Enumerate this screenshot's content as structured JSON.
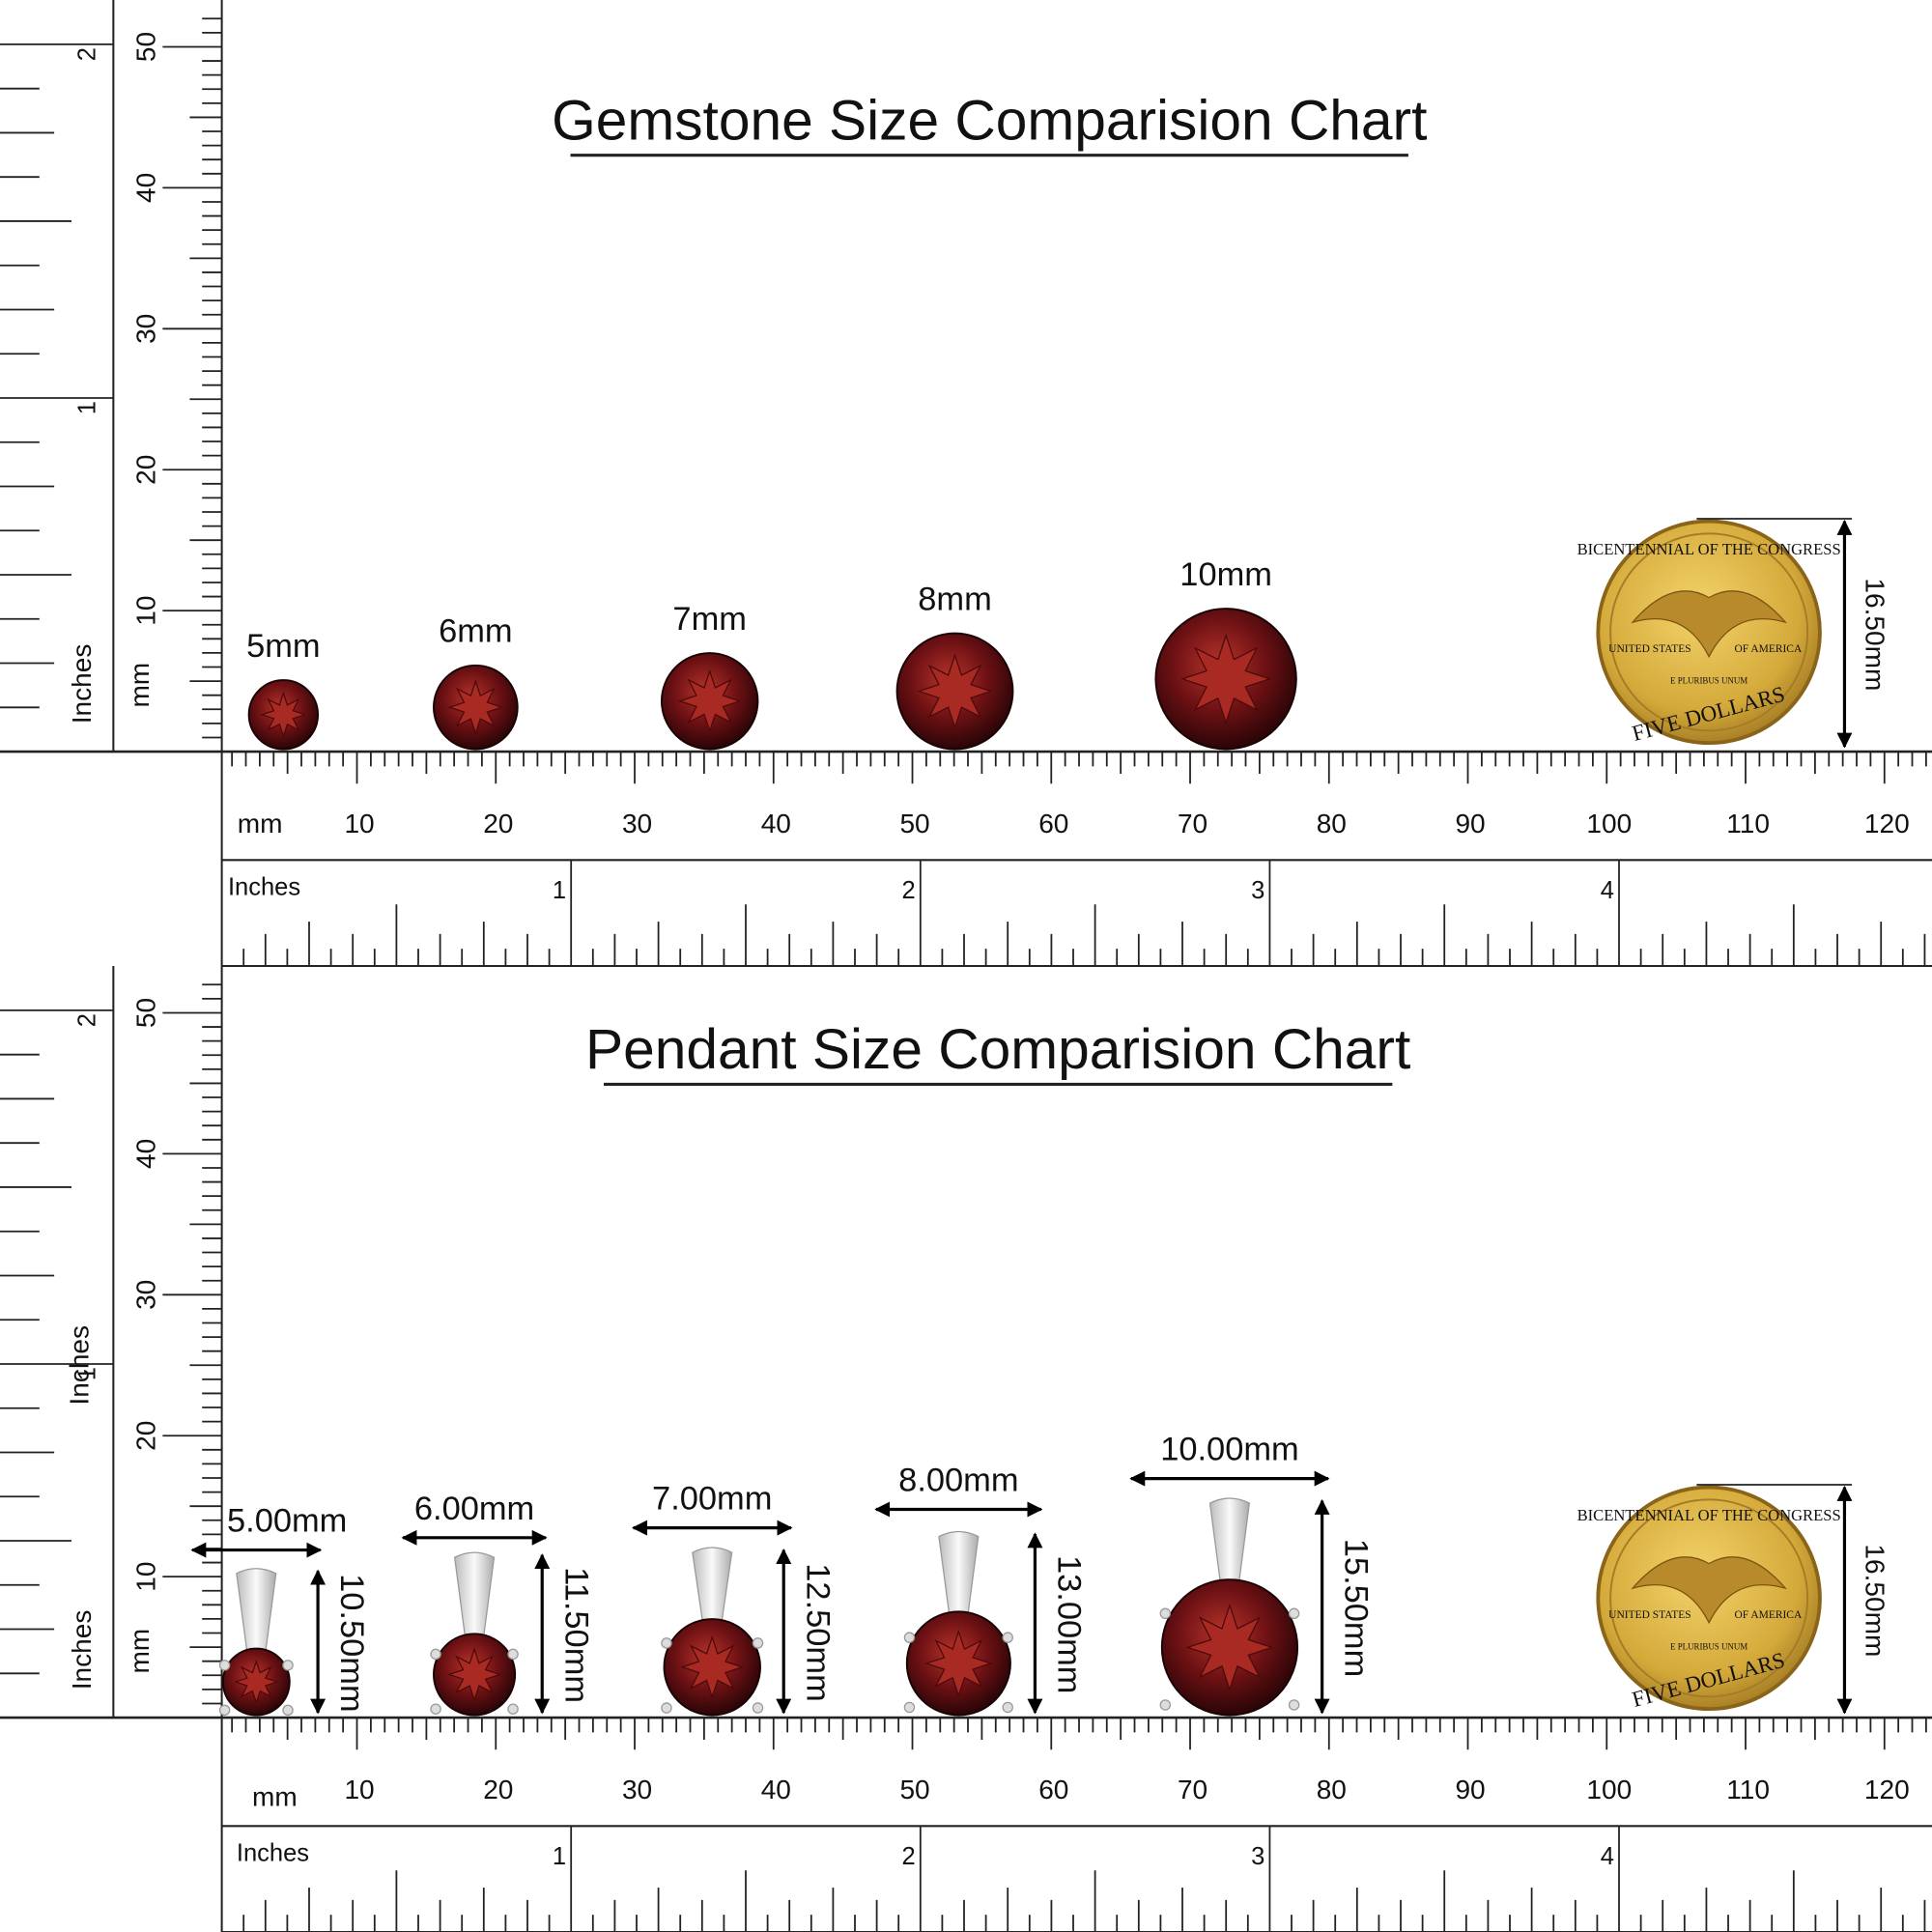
{
  "gemstone_chart": {
    "title": "Gemstone Size Comparision Chart",
    "gems": [
      "5mm",
      "6mm",
      "7mm",
      "8mm",
      "10mm"
    ],
    "coin_label": "16.50mm"
  },
  "pendant_chart": {
    "title": "Pendant Size Comparision Chart",
    "widths": [
      "5.00mm",
      "6.00mm",
      "7.00mm",
      "8.00mm",
      "10.00mm"
    ],
    "heights": [
      "10.50mm",
      "11.50mm",
      "12.50mm",
      "13.00mm",
      "15.50mm"
    ],
    "coin_label": "16.50mm"
  },
  "coin": {
    "top": "BICENTENNIAL OF THE CONGRESS",
    "left": "UNITED STATES",
    "right": "OF AMERICA",
    "motto": "E PLURIBUS UNUM",
    "bottom": "FIVE DOLLARS"
  },
  "rulers": {
    "mm_unit": "mm",
    "inch_unit": "Inches",
    "mm_labels": [
      "10",
      "20",
      "30",
      "40",
      "50",
      "60",
      "70",
      "80",
      "90",
      "100",
      "110",
      "120"
    ],
    "inch_labels": [
      "1",
      "2",
      "3",
      "4"
    ],
    "vertical_mm_labels": [
      "10",
      "20",
      "30",
      "40",
      "50"
    ],
    "vertical_inch_labels": [
      "1",
      "2"
    ]
  }
}
